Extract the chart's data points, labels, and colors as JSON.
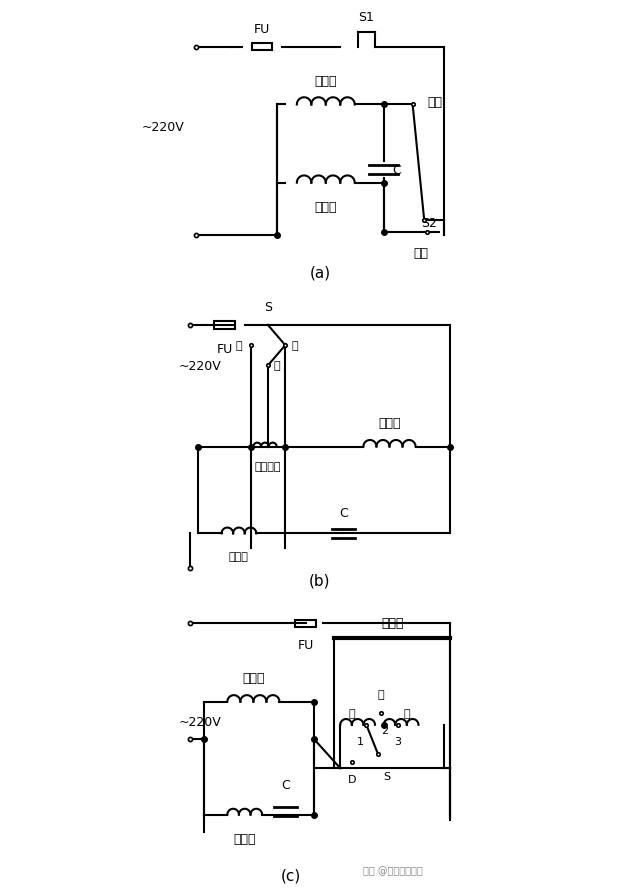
{
  "bg_color": "#ffffff",
  "line_color": "#000000",
  "title_a": "(a)",
  "title_b": "(b)",
  "title_c": "(c)",
  "watermark": "头条 @技成电工课堂"
}
